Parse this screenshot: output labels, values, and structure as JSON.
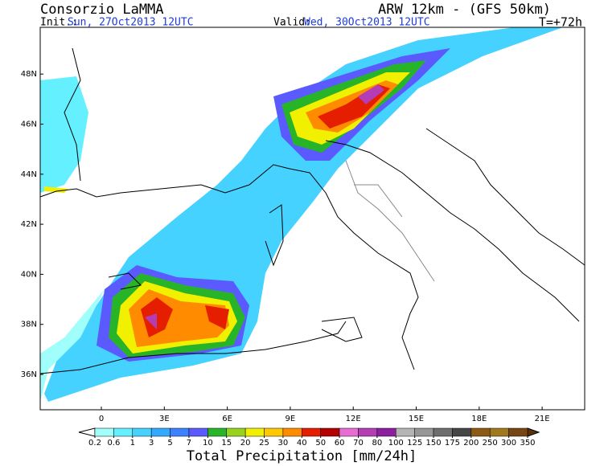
{
  "header": {
    "title": "Consorzio LaMMA",
    "model": "ARW 12km - (GFS 50km)",
    "init_label": "Init.:",
    "init": "Sun, 27Oct2013 12UTC",
    "valid_label": "Valid:",
    "valid": "Wed, 30Oct2013 12UTC",
    "lead": "T=+72h"
  },
  "map": {
    "lat_labels": [
      {
        "value": 36,
        "label": "36N"
      },
      {
        "value": 38,
        "label": "38N"
      },
      {
        "value": 40,
        "label": "40N"
      },
      {
        "value": 42,
        "label": "42N"
      },
      {
        "value": 44,
        "label": "44N"
      },
      {
        "value": 46,
        "label": "46N"
      },
      {
        "value": 48,
        "label": "48N"
      }
    ],
    "lon_labels": [
      {
        "value": 0,
        "label": "0"
      },
      {
        "value": 3,
        "label": "3E"
      },
      {
        "value": 6,
        "label": "6E"
      },
      {
        "value": 9,
        "label": "9E"
      },
      {
        "value": 12,
        "label": "12E"
      },
      {
        "value": 15,
        "label": "15E"
      },
      {
        "value": 18,
        "label": "18E"
      },
      {
        "value": 21,
        "label": "21E"
      }
    ]
  },
  "colorbar": {
    "title": "Total Precipitation [mm/24h]",
    "levels": [
      0.2,
      0.6,
      1,
      3,
      5,
      7,
      10,
      15,
      20,
      25,
      30,
      40,
      50,
      60,
      70,
      80,
      100,
      125,
      150,
      175,
      200,
      250,
      300,
      350
    ],
    "under_color": "#ffffff",
    "colors": [
      "#a0fffa",
      "#64f0ff",
      "#46d2ff",
      "#32aaff",
      "#3c82ff",
      "#5a5aff",
      "#28b428",
      "#96d21e",
      "#f0f000",
      "#ffc800",
      "#ff8c00",
      "#e61e00",
      "#b40000",
      "#e66ed2",
      "#b43cb4",
      "#8c1ea0",
      "#b4b4b4",
      "#969696",
      "#6e6e6e",
      "#464646",
      "#8c5a14",
      "#a0781e",
      "#784614"
    ],
    "over_color": "#5a320a"
  }
}
